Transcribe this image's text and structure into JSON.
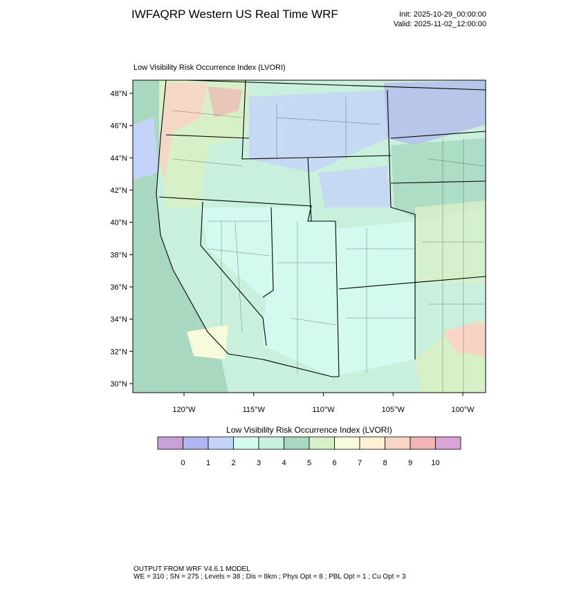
{
  "header": {
    "title": "IWFAQRP Western US Real Time WRF",
    "init": "Init: 2025-10-29_00:00:00",
    "valid": "Valid: 2025-11-02_12:00:00"
  },
  "map": {
    "subtitle": "Low Visibility Risk Occurrence Index   (LVORI)",
    "lat_ticks": [
      {
        "value": 48,
        "label": "48°N"
      },
      {
        "value": 46,
        "label": "46°N"
      },
      {
        "value": 44,
        "label": "44°N"
      },
      {
        "value": 42,
        "label": "42°N"
      },
      {
        "value": 40,
        "label": "40°N"
      },
      {
        "value": 38,
        "label": "38°N"
      },
      {
        "value": 36,
        "label": "36°N"
      },
      {
        "value": 34,
        "label": "34°N"
      },
      {
        "value": 32,
        "label": "32°N"
      },
      {
        "value": 30,
        "label": "30°N"
      }
    ],
    "lon_ticks": [
      {
        "value": -120,
        "label": "120°W"
      },
      {
        "value": -115,
        "label": "115°W"
      },
      {
        "value": -110,
        "label": "110°W"
      },
      {
        "value": -105,
        "label": "105°W"
      },
      {
        "value": -100,
        "label": "100°W"
      }
    ]
  },
  "colorbar": {
    "title": "Low Visibility Risk Occurrence Index  (LVORI)",
    "colors": [
      "#c8a0d8",
      "#b0b4f0",
      "#c4d4f8",
      "#d4faf0",
      "#c8f0dc",
      "#a8d8c0",
      "#d8f0c8",
      "#f8fadc",
      "#fff0d4",
      "#f8d4c4",
      "#f0b4b4",
      "#d8a4d4"
    ],
    "ticks": [
      0,
      1,
      2,
      3,
      4,
      5,
      6,
      7,
      8,
      9,
      10
    ]
  },
  "footer": {
    "line1": "OUTPUT FROM WRF V4.6.1 MODEL",
    "line2": "WE = 310 ; SN = 275 ; Levels = 38 ; Dis = 8km ; Phys Opt = 8 ; PBL Opt = 1 ; Cu Opt = 3"
  }
}
